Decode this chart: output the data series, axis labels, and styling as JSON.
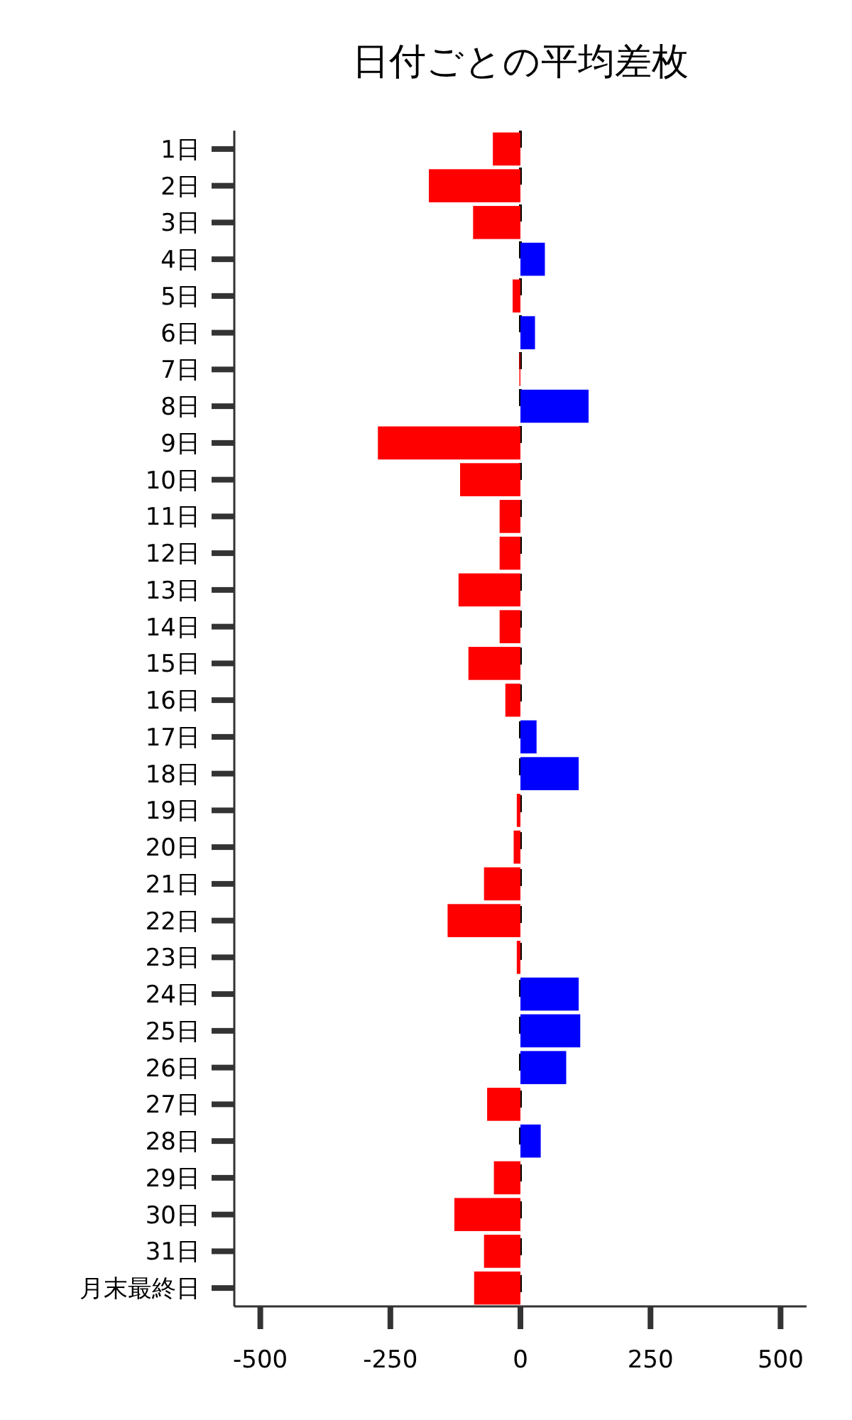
{
  "chart_data": {
    "type": "bar",
    "orientation": "horizontal",
    "title": "日付ごとの平均差枚",
    "categories": [
      "1日",
      "2日",
      "3日",
      "4日",
      "5日",
      "6日",
      "7日",
      "8日",
      "9日",
      "10日",
      "11日",
      "12日",
      "13日",
      "14日",
      "15日",
      "16日",
      "17日",
      "18日",
      "19日",
      "20日",
      "21日",
      "22日",
      "23日",
      "24日",
      "25日",
      "26日",
      "27日",
      "28日",
      "29日",
      "30日",
      "31日",
      "月末最終日"
    ],
    "values": [
      -53,
      -176,
      -91,
      47,
      -15,
      28,
      -2,
      131,
      -274,
      -116,
      -40,
      -40,
      -119,
      -40,
      -100,
      -29,
      31,
      112,
      -7,
      -13,
      -70,
      -140,
      -7,
      112,
      115,
      88,
      -64,
      39,
      -51,
      -127,
      -70,
      -89
    ],
    "colors": [
      "#ff0000",
      "#ff0000",
      "#ff0000",
      "#0000ff",
      "#ff0000",
      "#0000ff",
      "#ff0000",
      "#0000ff",
      "#ff0000",
      "#ff0000",
      "#ff0000",
      "#ff0000",
      "#ff0000",
      "#ff0000",
      "#ff0000",
      "#ff0000",
      "#0000ff",
      "#0000ff",
      "#ff0000",
      "#ff0000",
      "#ff0000",
      "#ff0000",
      "#ff0000",
      "#0000ff",
      "#0000ff",
      "#0000ff",
      "#ff0000",
      "#0000ff",
      "#ff0000",
      "#ff0000",
      "#ff0000",
      "#ff0000"
    ],
    "xlim": [
      -550,
      550
    ],
    "xticks": [
      -500,
      -250,
      0,
      250,
      500
    ],
    "ref_lines": [
      {
        "axis": "x",
        "value": 0,
        "line_style": "dashed",
        "color": "#000000"
      }
    ],
    "grid": false
  }
}
